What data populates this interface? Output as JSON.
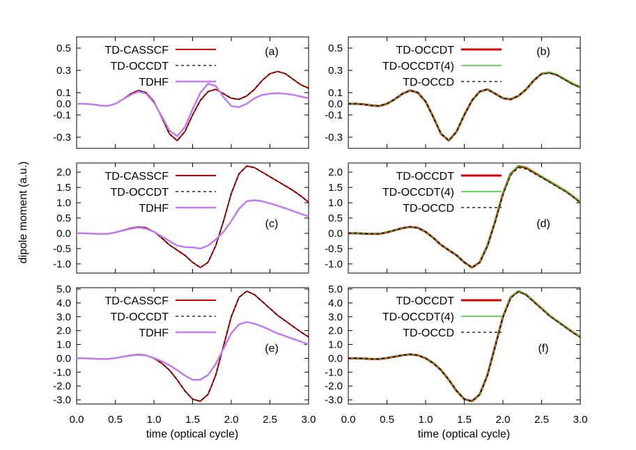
{
  "figure": {
    "ylabel": "dipole moment (a.u.)",
    "xlabel": "time (optical cycle)"
  },
  "colors": {
    "red": "#d40000",
    "purple": "#bf7cf0",
    "green": "#33cc22",
    "black": "#000000"
  },
  "chart_data": [
    {
      "type": "line",
      "panel_label": "(a)",
      "xlim": [
        0,
        3
      ],
      "ylim": [
        -0.4,
        0.6
      ],
      "xticks": [
        "0.0",
        "0.5",
        "1.0",
        "1.5",
        "2.0",
        "2.5",
        "3.0"
      ],
      "yticks": [
        [
          "0.5",
          0.5
        ],
        [
          "0.3",
          0.3
        ],
        [
          "0.1",
          0.1
        ],
        [
          "0.0",
          0.0
        ],
        [
          "-0.1",
          -0.1
        ],
        [
          "-0.3",
          -0.3
        ]
      ],
      "legend_position": "top-left",
      "x": [
        0,
        0.1,
        0.2,
        0.3,
        0.4,
        0.5,
        0.6,
        0.7,
        0.8,
        0.9,
        1.0,
        1.1,
        1.2,
        1.3,
        1.4,
        1.5,
        1.6,
        1.7,
        1.8,
        1.9,
        2.0,
        2.1,
        2.2,
        2.3,
        2.4,
        2.5,
        2.6,
        2.7,
        2.8,
        2.9,
        3.0
      ],
      "series": [
        {
          "name": "TD-CASSCF",
          "style": "red",
          "values": [
            0,
            0,
            -0.005,
            -0.015,
            -0.02,
            0,
            0.04,
            0.09,
            0.12,
            0.1,
            0.02,
            -0.12,
            -0.27,
            -0.33,
            -0.25,
            -0.1,
            0.03,
            0.11,
            0.13,
            0.09,
            0.05,
            0.04,
            0.07,
            0.13,
            0.21,
            0.27,
            0.29,
            0.27,
            0.22,
            0.17,
            0.14
          ]
        },
        {
          "name": "TD-OCCDT",
          "style": "black-dash",
          "values": [
            0,
            0,
            -0.005,
            -0.015,
            -0.02,
            0,
            0.04,
            0.09,
            0.12,
            0.1,
            0.02,
            -0.12,
            -0.27,
            -0.33,
            -0.25,
            -0.1,
            0.03,
            0.11,
            0.13,
            0.09,
            0.05,
            0.04,
            0.07,
            0.13,
            0.21,
            0.27,
            0.29,
            0.27,
            0.22,
            0.17,
            0.14
          ]
        },
        {
          "name": "TDHF",
          "style": "purple",
          "values": [
            0,
            0,
            -0.005,
            -0.015,
            -0.02,
            0,
            0.04,
            0.08,
            0.11,
            0.09,
            0.01,
            -0.11,
            -0.24,
            -0.29,
            -0.21,
            -0.05,
            0.1,
            0.18,
            0.16,
            0.06,
            -0.02,
            -0.03,
            0,
            0.05,
            0.08,
            0.09,
            0.095,
            0.09,
            0.08,
            0.065,
            0.05
          ]
        }
      ]
    },
    {
      "type": "line",
      "panel_label": "(b)",
      "xlim": [
        0,
        3
      ],
      "ylim": [
        -0.4,
        0.6
      ],
      "xticks": [
        "0.0",
        "0.5",
        "1.0",
        "1.5",
        "2.0",
        "2.5",
        "3.0"
      ],
      "yticks": [
        [
          "0.5",
          0.5
        ],
        [
          "0.3",
          0.3
        ],
        [
          "0.1",
          0.1
        ],
        [
          "0.0",
          0.0
        ],
        [
          "-0.1",
          -0.1
        ],
        [
          "-0.3",
          -0.3
        ]
      ],
      "legend_position": "top-left",
      "x": [
        0,
        0.1,
        0.2,
        0.3,
        0.4,
        0.5,
        0.6,
        0.7,
        0.8,
        0.9,
        1.0,
        1.1,
        1.2,
        1.3,
        1.4,
        1.5,
        1.6,
        1.7,
        1.8,
        1.9,
        2.0,
        2.1,
        2.2,
        2.3,
        2.4,
        2.5,
        2.6,
        2.7,
        2.8,
        2.9,
        3.0
      ],
      "series": [
        {
          "name": "TD-OCCDT",
          "style": "red-thick",
          "values": [
            0,
            0,
            -0.005,
            -0.015,
            -0.02,
            0,
            0.04,
            0.09,
            0.12,
            0.1,
            0.02,
            -0.12,
            -0.27,
            -0.33,
            -0.25,
            -0.1,
            0.03,
            0.11,
            0.13,
            0.09,
            0.05,
            0.04,
            0.07,
            0.13,
            0.21,
            0.27,
            0.28,
            0.26,
            0.22,
            0.18,
            0.15
          ]
        },
        {
          "name": "TD-OCCDT(4)",
          "style": "green",
          "values": [
            0,
            0,
            -0.005,
            -0.015,
            -0.02,
            0,
            0.04,
            0.09,
            0.12,
            0.1,
            0.02,
            -0.12,
            -0.27,
            -0.33,
            -0.25,
            -0.1,
            0.03,
            0.11,
            0.13,
            0.09,
            0.05,
            0.04,
            0.07,
            0.13,
            0.21,
            0.27,
            0.285,
            0.265,
            0.225,
            0.185,
            0.155
          ]
        },
        {
          "name": "TD-OCCD",
          "style": "black-dash",
          "values": [
            0,
            0,
            -0.005,
            -0.015,
            -0.02,
            0,
            0.04,
            0.09,
            0.12,
            0.1,
            0.02,
            -0.12,
            -0.27,
            -0.33,
            -0.25,
            -0.1,
            0.03,
            0.11,
            0.13,
            0.09,
            0.05,
            0.04,
            0.07,
            0.13,
            0.21,
            0.265,
            0.275,
            0.255,
            0.215,
            0.175,
            0.145
          ]
        }
      ]
    },
    {
      "type": "line",
      "panel_label": "(c)",
      "xlim": [
        0,
        3
      ],
      "ylim": [
        -1.3,
        2.3
      ],
      "xticks": [
        "0.0",
        "0.5",
        "1.0",
        "1.5",
        "2.0",
        "2.5",
        "3.0"
      ],
      "yticks": [
        [
          "2.0",
          2.0
        ],
        [
          "1.5",
          1.5
        ],
        [
          "1.0",
          1.0
        ],
        [
          "0.5",
          0.5
        ],
        [
          "0.0",
          0.0
        ],
        [
          "-0.5",
          -0.5
        ],
        [
          "-1.0",
          -1.0
        ]
      ],
      "legend_position": "top-left",
      "x": [
        0,
        0.1,
        0.2,
        0.3,
        0.4,
        0.5,
        0.6,
        0.7,
        0.8,
        0.9,
        1.0,
        1.1,
        1.2,
        1.3,
        1.4,
        1.5,
        1.6,
        1.7,
        1.8,
        1.9,
        2.0,
        2.1,
        2.2,
        2.3,
        2.4,
        2.5,
        2.6,
        2.7,
        2.8,
        2.9,
        3.0
      ],
      "series": [
        {
          "name": "TD-CASSCF",
          "style": "red",
          "values": [
            0,
            0,
            -0.01,
            -0.02,
            -0.02,
            0.03,
            0.1,
            0.17,
            0.21,
            0.18,
            0.05,
            -0.15,
            -0.38,
            -0.55,
            -0.72,
            -0.95,
            -1.12,
            -0.95,
            -0.4,
            0.4,
            1.3,
            1.95,
            2.2,
            2.15,
            2.0,
            1.85,
            1.7,
            1.55,
            1.4,
            1.22,
            1.02
          ]
        },
        {
          "name": "TD-OCCDT",
          "style": "black-dash",
          "values": [
            0,
            0,
            -0.01,
            -0.02,
            -0.02,
            0.03,
            0.1,
            0.17,
            0.21,
            0.18,
            0.05,
            -0.15,
            -0.38,
            -0.55,
            -0.72,
            -0.95,
            -1.12,
            -0.95,
            -0.4,
            0.4,
            1.3,
            1.95,
            2.2,
            2.15,
            2.0,
            1.85,
            1.7,
            1.55,
            1.4,
            1.22,
            1.02
          ]
        },
        {
          "name": "TDHF",
          "style": "purple",
          "values": [
            0,
            0,
            -0.01,
            -0.02,
            -0.02,
            0.03,
            0.09,
            0.15,
            0.19,
            0.15,
            0.05,
            -0.1,
            -0.25,
            -0.4,
            -0.45,
            -0.46,
            -0.5,
            -0.4,
            -0.2,
            0.05,
            0.4,
            0.8,
            1.05,
            1.08,
            1.05,
            0.98,
            0.9,
            0.82,
            0.73,
            0.64,
            0.55
          ]
        }
      ]
    },
    {
      "type": "line",
      "panel_label": "(d)",
      "xlim": [
        0,
        3
      ],
      "ylim": [
        -1.3,
        2.3
      ],
      "xticks": [
        "0.0",
        "0.5",
        "1.0",
        "1.5",
        "2.0",
        "2.5",
        "3.0"
      ],
      "yticks": [
        [
          "2.0",
          2.0
        ],
        [
          "1.5",
          1.5
        ],
        [
          "1.0",
          1.0
        ],
        [
          "0.5",
          0.5
        ],
        [
          "0.0",
          0.0
        ],
        [
          "-0.5",
          -0.5
        ],
        [
          "-1.0",
          -1.0
        ]
      ],
      "legend_position": "top-left",
      "x": [
        0,
        0.1,
        0.2,
        0.3,
        0.4,
        0.5,
        0.6,
        0.7,
        0.8,
        0.9,
        1.0,
        1.1,
        1.2,
        1.3,
        1.4,
        1.5,
        1.6,
        1.7,
        1.8,
        1.9,
        2.0,
        2.1,
        2.2,
        2.3,
        2.4,
        2.5,
        2.6,
        2.7,
        2.8,
        2.9,
        3.0
      ],
      "series": [
        {
          "name": "TD-OCCDT",
          "style": "red-thick",
          "values": [
            0,
            0,
            -0.01,
            -0.02,
            -0.02,
            0.03,
            0.1,
            0.17,
            0.21,
            0.18,
            0.05,
            -0.15,
            -0.38,
            -0.55,
            -0.72,
            -0.95,
            -1.12,
            -0.95,
            -0.4,
            0.4,
            1.3,
            1.95,
            2.2,
            2.15,
            2.0,
            1.85,
            1.7,
            1.55,
            1.4,
            1.22,
            1.02
          ]
        },
        {
          "name": "TD-OCCDT(4)",
          "style": "green",
          "values": [
            0,
            0,
            -0.01,
            -0.02,
            -0.02,
            0.03,
            0.1,
            0.17,
            0.21,
            0.18,
            0.05,
            -0.15,
            -0.38,
            -0.55,
            -0.72,
            -0.95,
            -1.12,
            -0.95,
            -0.4,
            0.4,
            1.3,
            1.95,
            2.22,
            2.17,
            2.02,
            1.87,
            1.72,
            1.56,
            1.41,
            1.23,
            1.03
          ]
        },
        {
          "name": "TD-OCCD",
          "style": "black-dash",
          "values": [
            0,
            0,
            -0.01,
            -0.02,
            -0.02,
            0.03,
            0.1,
            0.17,
            0.21,
            0.18,
            0.05,
            -0.15,
            -0.38,
            -0.55,
            -0.72,
            -0.95,
            -1.12,
            -0.95,
            -0.42,
            0.37,
            1.25,
            1.9,
            2.15,
            2.1,
            1.96,
            1.82,
            1.67,
            1.52,
            1.37,
            1.2,
            1.0
          ]
        }
      ]
    },
    {
      "type": "line",
      "panel_label": "(e)",
      "xlim": [
        0,
        3
      ],
      "ylim": [
        -3.3,
        5.1
      ],
      "xticks": [
        "0.0",
        "0.5",
        "1.0",
        "1.5",
        "2.0",
        "2.5",
        "3.0"
      ],
      "yticks": [
        [
          "5.0",
          5.0
        ],
        [
          "4.0",
          4.0
        ],
        [
          "3.0",
          3.0
        ],
        [
          "2.0",
          2.0
        ],
        [
          "1.0",
          1.0
        ],
        [
          "0.0",
          0.0
        ],
        [
          "-1.0",
          -1.0
        ],
        [
          "-2.0",
          -2.0
        ],
        [
          "-3.0",
          -3.0
        ]
      ],
      "legend_position": "top-left",
      "x": [
        0,
        0.1,
        0.2,
        0.3,
        0.4,
        0.5,
        0.6,
        0.7,
        0.8,
        0.9,
        1.0,
        1.1,
        1.2,
        1.3,
        1.4,
        1.5,
        1.6,
        1.7,
        1.8,
        1.9,
        2.0,
        2.1,
        2.2,
        2.3,
        2.4,
        2.5,
        2.6,
        2.7,
        2.8,
        2.9,
        3.0
      ],
      "series": [
        {
          "name": "TD-CASSCF",
          "style": "red",
          "values": [
            0,
            0,
            -0.02,
            -0.05,
            -0.05,
            0.02,
            0.12,
            0.22,
            0.28,
            0.22,
            0.0,
            -0.35,
            -0.85,
            -1.55,
            -2.35,
            -2.95,
            -3.1,
            -2.6,
            -1.2,
            0.9,
            3.0,
            4.4,
            4.85,
            4.6,
            4.1,
            3.6,
            3.1,
            2.7,
            2.3,
            1.9,
            1.55
          ]
        },
        {
          "name": "TD-OCCDT",
          "style": "black-dash",
          "values": [
            0,
            0,
            -0.02,
            -0.05,
            -0.05,
            0.02,
            0.12,
            0.22,
            0.28,
            0.22,
            0.0,
            -0.35,
            -0.85,
            -1.55,
            -2.35,
            -2.95,
            -3.1,
            -2.6,
            -1.2,
            0.9,
            3.0,
            4.4,
            4.85,
            4.6,
            4.1,
            3.6,
            3.1,
            2.7,
            2.3,
            1.9,
            1.55
          ]
        },
        {
          "name": "TDHF",
          "style": "purple",
          "values": [
            0,
            0,
            -0.02,
            -0.05,
            -0.05,
            0.02,
            0.11,
            0.2,
            0.25,
            0.2,
            0.02,
            -0.2,
            -0.5,
            -0.85,
            -1.25,
            -1.55,
            -1.55,
            -1.2,
            -0.4,
            0.7,
            1.8,
            2.45,
            2.62,
            2.5,
            2.3,
            2.05,
            1.8,
            1.6,
            1.4,
            1.2,
            1.0
          ]
        }
      ]
    },
    {
      "type": "line",
      "panel_label": "(f)",
      "xlim": [
        0,
        3
      ],
      "ylim": [
        -3.3,
        5.1
      ],
      "xticks": [
        "0.0",
        "0.5",
        "1.0",
        "1.5",
        "2.0",
        "2.5",
        "3.0"
      ],
      "yticks": [
        [
          "5.0",
          5.0
        ],
        [
          "4.0",
          4.0
        ],
        [
          "3.0",
          3.0
        ],
        [
          "2.0",
          2.0
        ],
        [
          "1.0",
          1.0
        ],
        [
          "0.0",
          0.0
        ],
        [
          "-1.0",
          -1.0
        ],
        [
          "-2.0",
          -2.0
        ],
        [
          "-3.0",
          -3.0
        ]
      ],
      "legend_position": "top-left",
      "x": [
        0,
        0.1,
        0.2,
        0.3,
        0.4,
        0.5,
        0.6,
        0.7,
        0.8,
        0.9,
        1.0,
        1.1,
        1.2,
        1.3,
        1.4,
        1.5,
        1.6,
        1.7,
        1.8,
        1.9,
        2.0,
        2.1,
        2.2,
        2.3,
        2.4,
        2.5,
        2.6,
        2.7,
        2.8,
        2.9,
        3.0
      ],
      "series": [
        {
          "name": "TD-OCCDT",
          "style": "red-thick",
          "values": [
            0,
            0,
            -0.02,
            -0.05,
            -0.05,
            0.02,
            0.12,
            0.22,
            0.28,
            0.22,
            0.0,
            -0.35,
            -0.85,
            -1.55,
            -2.35,
            -2.95,
            -3.1,
            -2.6,
            -1.2,
            0.9,
            3.0,
            4.4,
            4.85,
            4.6,
            4.1,
            3.6,
            3.1,
            2.7,
            2.3,
            1.9,
            1.55
          ]
        },
        {
          "name": "TD-OCCDT(4)",
          "style": "green",
          "values": [
            0,
            0,
            -0.02,
            -0.05,
            -0.05,
            0.02,
            0.12,
            0.22,
            0.28,
            0.22,
            0.0,
            -0.35,
            -0.85,
            -1.55,
            -2.35,
            -2.95,
            -3.1,
            -2.6,
            -1.2,
            0.9,
            3.0,
            4.42,
            4.88,
            4.62,
            4.12,
            3.62,
            3.12,
            2.72,
            2.32,
            1.92,
            1.57
          ]
        },
        {
          "name": "TD-OCCD",
          "style": "black-dash",
          "values": [
            0,
            0,
            -0.02,
            -0.05,
            -0.05,
            0.02,
            0.12,
            0.22,
            0.28,
            0.22,
            0.0,
            -0.35,
            -0.85,
            -1.55,
            -2.35,
            -2.95,
            -3.1,
            -2.62,
            -1.25,
            0.85,
            2.95,
            4.35,
            4.8,
            4.56,
            4.06,
            3.56,
            3.06,
            2.66,
            2.26,
            1.87,
            1.52
          ]
        }
      ]
    }
  ]
}
